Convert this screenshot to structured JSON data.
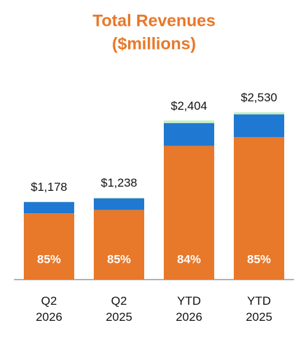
{
  "chart_data": {
    "type": "stacked-bar",
    "title": [
      "Total Revenues",
      "($millions)"
    ],
    "categories": [
      "Q2 2026",
      "Q2 2025",
      "YTD 2026",
      "YTD 2025"
    ],
    "series": [
      {
        "color": "#e8782a",
        "values": [
          1001,
          1052,
          2019,
          2151
        ]
      },
      {
        "color": "#1f78d1",
        "values": [
          170,
          176,
          345,
          345
        ]
      },
      {
        "color": "#c9efc4",
        "values": [
          7,
          10,
          40,
          34
        ]
      }
    ],
    "totals": [
      1178,
      1238,
      2404,
      2530
    ],
    "total_labels": [
      "$1,178",
      "$1,238",
      "$2,404",
      "$2,530"
    ],
    "shares": [
      85,
      85,
      84,
      85
    ],
    "share_labels": [
      "85%",
      "85%",
      "84%",
      "85%"
    ],
    "ylim": [
      0,
      2650
    ]
  }
}
